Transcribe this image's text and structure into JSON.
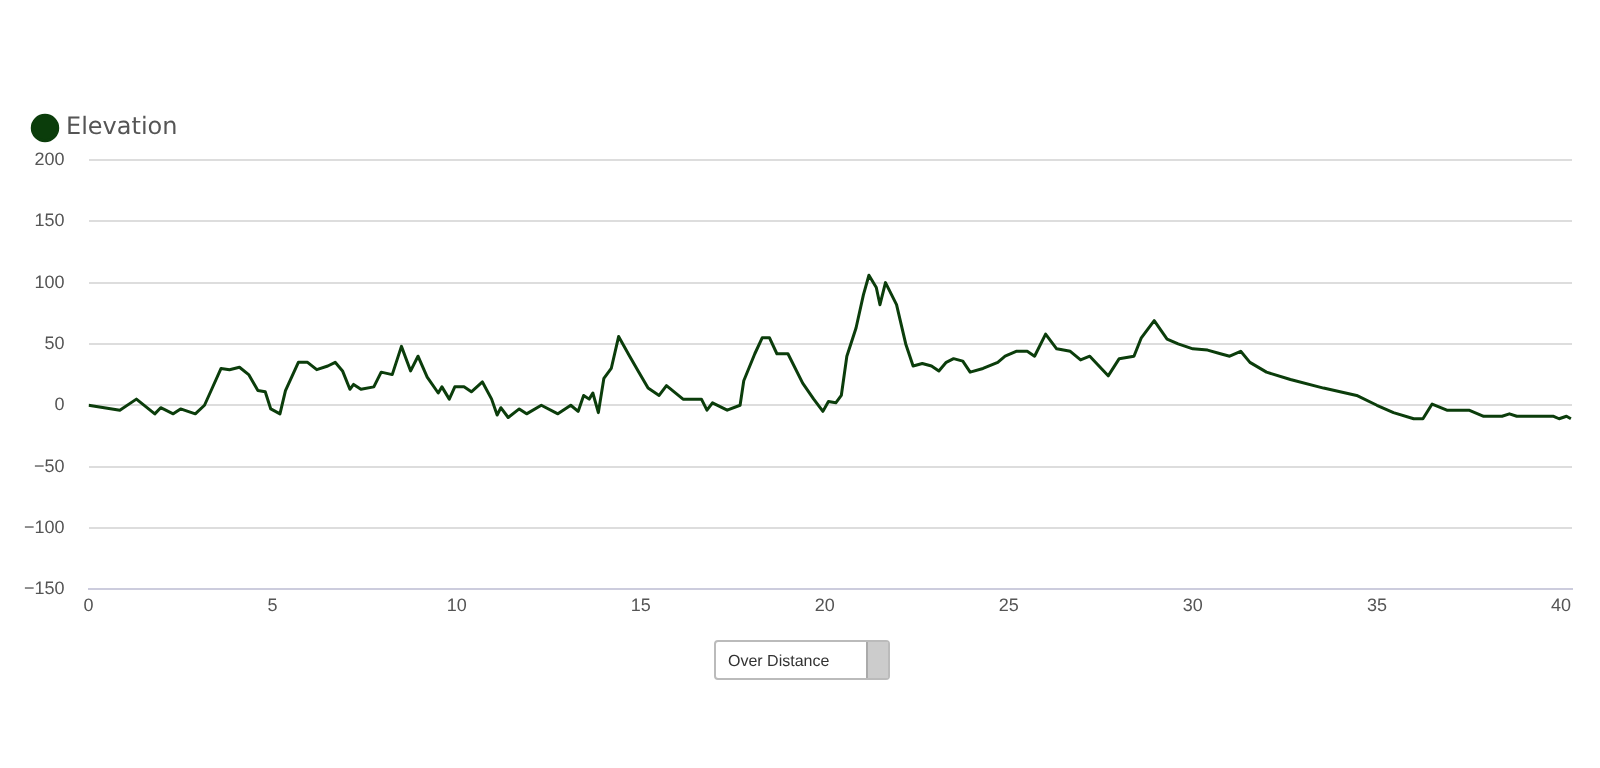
{
  "chart_data": {
    "type": "line",
    "legend": "top left",
    "grid": "y",
    "marker": "none",
    "line_style": "solid",
    "xlim": [
      0,
      40.3
    ],
    "xticks": [
      0,
      5,
      10,
      15,
      20,
      25,
      30,
      35,
      40
    ],
    "ylim": [
      -150,
      200
    ],
    "yticks": [
      -150,
      -100,
      -50,
      0,
      50,
      100,
      150,
      200
    ],
    "annotations": [
      "Over Distance"
    ],
    "series": [
      {
        "name": "Elevation",
        "color": "#0b3d0b",
        "x": [
          0,
          0.85,
          1.3,
          1.8,
          1.96,
          2.3,
          2.5,
          2.9,
          3.15,
          3.3,
          3.6,
          3.83,
          4.1,
          4.35,
          4.6,
          4.8,
          4.95,
          5.2,
          5.35,
          5.7,
          5.95,
          6.2,
          6.5,
          6.7,
          6.9,
          7.1,
          7.2,
          7.4,
          7.75,
          7.95,
          8.25,
          8.5,
          8.75,
          8.95,
          9.2,
          9.5,
          9.6,
          9.8,
          9.95,
          10.2,
          10.4,
          10.7,
          10.95,
          11.1,
          11.2,
          11.4,
          11.7,
          11.9,
          12.3,
          12.75,
          13.1,
          13.3,
          13.45,
          13.6,
          13.7,
          13.85,
          14.0,
          14.2,
          14.4,
          14.7,
          14.95,
          15.2,
          15.5,
          15.7,
          16.15,
          16.65,
          16.8,
          16.95,
          17.35,
          17.7,
          17.8,
          18.1,
          18.3,
          18.5,
          18.7,
          19.0,
          19.4,
          19.7,
          19.95,
          20.1,
          20.3,
          20.45,
          20.6,
          20.85,
          21.05,
          21.2,
          21.4,
          21.5,
          21.65,
          21.95,
          22.2,
          22.4,
          22.65,
          22.9,
          23.1,
          23.3,
          23.5,
          23.75,
          23.95,
          24.3,
          24.7,
          24.9,
          25.2,
          25.5,
          25.7,
          26.0,
          26.3,
          26.67,
          26.95,
          27.2,
          27.7,
          28.0,
          28.4,
          28.6,
          28.95,
          29.3,
          29.6,
          30.0,
          30.4,
          30.75,
          31.0,
          31.3,
          31.55,
          32.0,
          32.65,
          33.55,
          34.45,
          35.0,
          35.45,
          36.0,
          36.25,
          36.5,
          36.9,
          37.5,
          37.9,
          38.4,
          38.6,
          38.8,
          39.8,
          39.95,
          40.15,
          40.27
        ],
        "values": [
          0,
          -4,
          5,
          -7,
          -2,
          -7,
          -3,
          -7,
          0,
          10,
          30,
          29,
          31,
          25,
          12,
          11,
          -3,
          -7,
          12,
          35,
          35,
          29,
          32,
          35,
          28,
          13,
          17,
          13,
          15,
          27,
          25,
          48,
          28,
          40,
          23,
          10,
          15,
          5,
          15,
          15,
          11,
          19,
          5,
          -8,
          -2,
          -10,
          -3,
          -7,
          0,
          -7,
          0,
          -5,
          8,
          5,
          10,
          -6,
          22,
          30,
          56,
          40,
          27,
          14,
          8,
          16,
          5,
          5,
          -4,
          2,
          -4,
          0,
          20,
          42,
          55,
          55,
          42,
          42,
          18,
          5,
          -5,
          3,
          2,
          8,
          40,
          63,
          90,
          106,
          96,
          82,
          100,
          82,
          50,
          32,
          34,
          32,
          28,
          35,
          38,
          36,
          27,
          30,
          35,
          40,
          44,
          44,
          40,
          58,
          46,
          44,
          37,
          40,
          24,
          38,
          40,
          55,
          69,
          54,
          50,
          46,
          45,
          42,
          40,
          44,
          35,
          27,
          21,
          14,
          8,
          0,
          -6,
          -11,
          -11,
          1,
          -4,
          -4,
          -9,
          -9,
          -7,
          -9,
          -9,
          -11,
          -9,
          -11
        ]
      }
    ]
  }
}
